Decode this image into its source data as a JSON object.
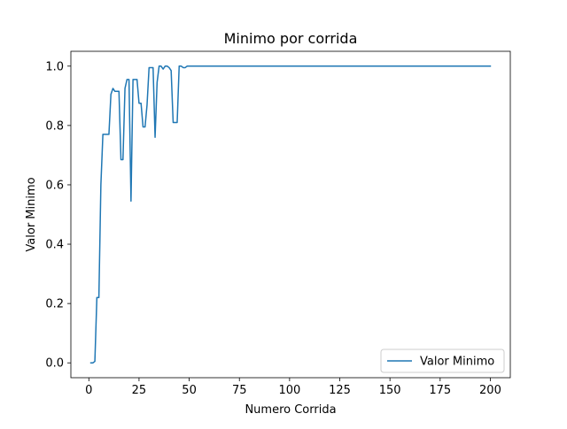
{
  "chart_data": {
    "type": "line",
    "title": "Minimo por corrida",
    "xlabel": "Numero Corrida",
    "ylabel": "Valor Minimo",
    "xlim": [
      -8.95,
      209.95
    ],
    "ylim": [
      -0.05,
      1.05
    ],
    "xticks": [
      0,
      25,
      50,
      75,
      100,
      125,
      150,
      175,
      200
    ],
    "xtick_labels": [
      "0",
      "25",
      "50",
      "75",
      "100",
      "125",
      "150",
      "175",
      "200"
    ],
    "yticks": [
      0.0,
      0.2,
      0.4,
      0.6,
      0.8,
      1.0
    ],
    "ytick_labels": [
      "0.0",
      "0.2",
      "0.4",
      "0.6",
      "0.8",
      "1.0"
    ],
    "grid": false,
    "legend_position": "lower-right",
    "series": [
      {
        "name": "Valor Minimo",
        "color": "#1f77b4",
        "x": [
          1,
          2,
          3,
          4,
          5,
          6,
          7,
          8,
          9,
          10,
          11,
          12,
          13,
          14,
          15,
          16,
          17,
          18,
          19,
          20,
          21,
          22,
          23,
          24,
          25,
          26,
          27,
          28,
          29,
          30,
          31,
          32,
          33,
          34,
          35,
          36,
          37,
          38,
          39,
          40,
          41,
          42,
          43,
          44,
          45,
          46,
          47,
          48,
          49,
          50,
          60,
          80,
          100,
          125,
          150,
          175,
          200
        ],
        "y": [
          0.0,
          0.0,
          0.005,
          0.22,
          0.22,
          0.6,
          0.77,
          0.77,
          0.77,
          0.77,
          0.905,
          0.925,
          0.915,
          0.915,
          0.915,
          0.685,
          0.685,
          0.925,
          0.955,
          0.955,
          0.545,
          0.955,
          0.955,
          0.955,
          0.875,
          0.875,
          0.795,
          0.795,
          0.87,
          0.995,
          0.995,
          0.995,
          0.76,
          0.945,
          1.0,
          1.0,
          0.99,
          1.0,
          1.0,
          0.995,
          0.985,
          0.81,
          0.81,
          0.81,
          1.0,
          1.0,
          0.995,
          0.995,
          1.0,
          1.0,
          1.0,
          1.0,
          1.0,
          1.0,
          1.0,
          1.0,
          1.0
        ]
      }
    ]
  }
}
